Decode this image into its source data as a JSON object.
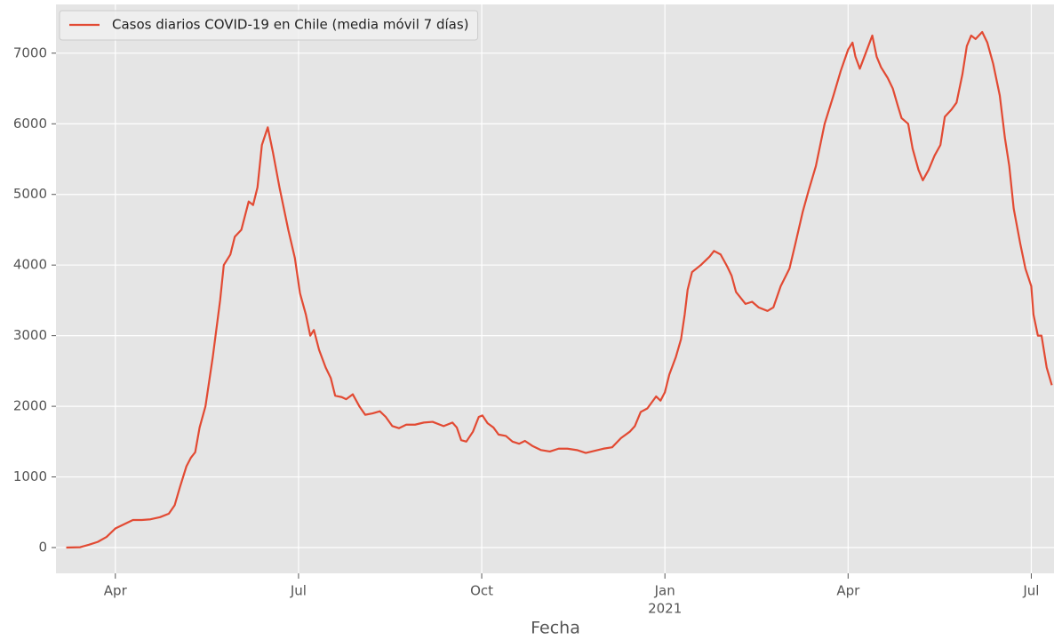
{
  "chart_data": {
    "type": "line",
    "xlabel": "Fecha",
    "x_year_label": "2021",
    "x": [
      2020.183,
      2020.202,
      2020.214,
      2020.226,
      2020.238,
      2020.25,
      2020.262,
      2020.274,
      2020.286,
      2020.298,
      2020.311,
      2020.323,
      2020.331,
      2020.338,
      2020.347,
      2020.353,
      2020.359,
      2020.365,
      2020.373,
      2020.383,
      2020.393,
      2020.398,
      2020.407,
      2020.413,
      2020.422,
      2020.432,
      2020.438,
      2020.444,
      2020.45,
      2020.458,
      2020.465,
      2020.474,
      2020.48,
      2020.486,
      2020.495,
      2020.502,
      2020.51,
      2020.516,
      2020.521,
      2020.528,
      2020.537,
      2020.544,
      2020.55,
      2020.559,
      2020.565,
      2020.574,
      2020.583,
      2020.591,
      2020.601,
      2020.611,
      2020.619,
      2020.628,
      2020.637,
      2020.647,
      2020.659,
      2020.671,
      2020.683,
      2020.698,
      2020.71,
      2020.716,
      2020.722,
      2020.729,
      2020.738,
      2020.746,
      2020.751,
      2020.758,
      2020.766,
      2020.773,
      2020.783,
      2020.792,
      2020.801,
      2020.809,
      2020.819,
      2020.831,
      2020.843,
      2020.855,
      2020.867,
      2020.88,
      2020.892,
      2020.904,
      2020.916,
      2020.928,
      2020.94,
      2020.952,
      2020.959,
      2020.967,
      2020.976,
      2020.988,
      2020.994,
      2021.0,
      2021.006,
      2021.015,
      2021.022,
      2021.027,
      2021.031,
      2021.037,
      2021.049,
      2021.061,
      2021.067,
      2021.076,
      2021.085,
      2021.091,
      2021.097,
      2021.11,
      2021.119,
      2021.128,
      2021.14,
      2021.148,
      2021.158,
      2021.17,
      2021.178,
      2021.188,
      2021.196,
      2021.206,
      2021.218,
      2021.23,
      2021.24,
      2021.25,
      2021.256,
      2021.26,
      2021.266,
      2021.274,
      2021.283,
      2021.289,
      2021.295,
      2021.304,
      2021.311,
      2021.318,
      2021.323,
      2021.332,
      2021.338,
      2021.346,
      2021.352,
      2021.36,
      2021.368,
      2021.376,
      2021.382,
      2021.391,
      2021.398,
      2021.406,
      2021.412,
      2021.418,
      2021.424,
      2021.433,
      2021.44,
      2021.448,
      2021.457,
      2021.464,
      2021.47,
      2021.476,
      2021.485,
      2021.492,
      2021.5,
      2021.503,
      2021.509,
      2021.514,
      2021.521,
      2021.528
    ],
    "series": [
      {
        "name": "Casos diarios COVID-19 en Chile (media móvil 7 días)",
        "color": "#e24a33",
        "values": [
          0,
          5,
          40,
          80,
          150,
          270,
          330,
          390,
          390,
          400,
          430,
          480,
          600,
          850,
          1150,
          1270,
          1350,
          1700,
          2000,
          2700,
          3500,
          4000,
          4150,
          4400,
          4500,
          4900,
          4850,
          5100,
          5700,
          5950,
          5600,
          5100,
          4800,
          4500,
          4100,
          3600,
          3300,
          3000,
          3080,
          2800,
          2550,
          2400,
          2150,
          2130,
          2100,
          2170,
          2000,
          1880,
          1900,
          1930,
          1850,
          1720,
          1690,
          1740,
          1740,
          1770,
          1780,
          1720,
          1770,
          1700,
          1520,
          1500,
          1640,
          1850,
          1870,
          1760,
          1700,
          1600,
          1580,
          1500,
          1470,
          1510,
          1440,
          1380,
          1360,
          1400,
          1400,
          1380,
          1340,
          1370,
          1400,
          1420,
          1550,
          1640,
          1720,
          1920,
          1970,
          2140,
          2080,
          2200,
          2450,
          2700,
          2950,
          3300,
          3650,
          3900,
          4000,
          4120,
          4200,
          4150,
          3980,
          3850,
          3620,
          3450,
          3480,
          3400,
          3350,
          3400,
          3700,
          3950,
          4300,
          4750,
          5050,
          5400,
          6000,
          6400,
          6750,
          7050,
          7150,
          6950,
          6780,
          7000,
          7250,
          6950,
          6800,
          6650,
          6500,
          6250,
          6080,
          6000,
          5650,
          5350,
          5200,
          5350,
          5550,
          5700,
          6100,
          6200,
          6300,
          6700,
          7100,
          7250,
          7200,
          7300,
          7150,
          6850,
          6400,
          5800,
          5400,
          4800,
          4300,
          3950,
          3700,
          3300,
          3000,
          3000,
          2550,
          2300
        ]
      }
    ],
    "xlim": [
      2020.169,
      2021.531
    ],
    "xticks": [
      {
        "value": 2020.25,
        "label": "Apr"
      },
      {
        "value": 2020.5,
        "label": "Jul"
      },
      {
        "value": 2020.75,
        "label": "Oct"
      },
      {
        "value": 2021.0,
        "label": "Jan"
      },
      {
        "value": 2021.25,
        "label": "Apr"
      },
      {
        "value": 2021.5,
        "label": "Jul"
      }
    ],
    "ylim": [
      -365,
      7690
    ],
    "yticks": [
      0,
      1000,
      2000,
      3000,
      4000,
      5000,
      6000,
      7000
    ],
    "grid": true,
    "legend": "upper left"
  }
}
